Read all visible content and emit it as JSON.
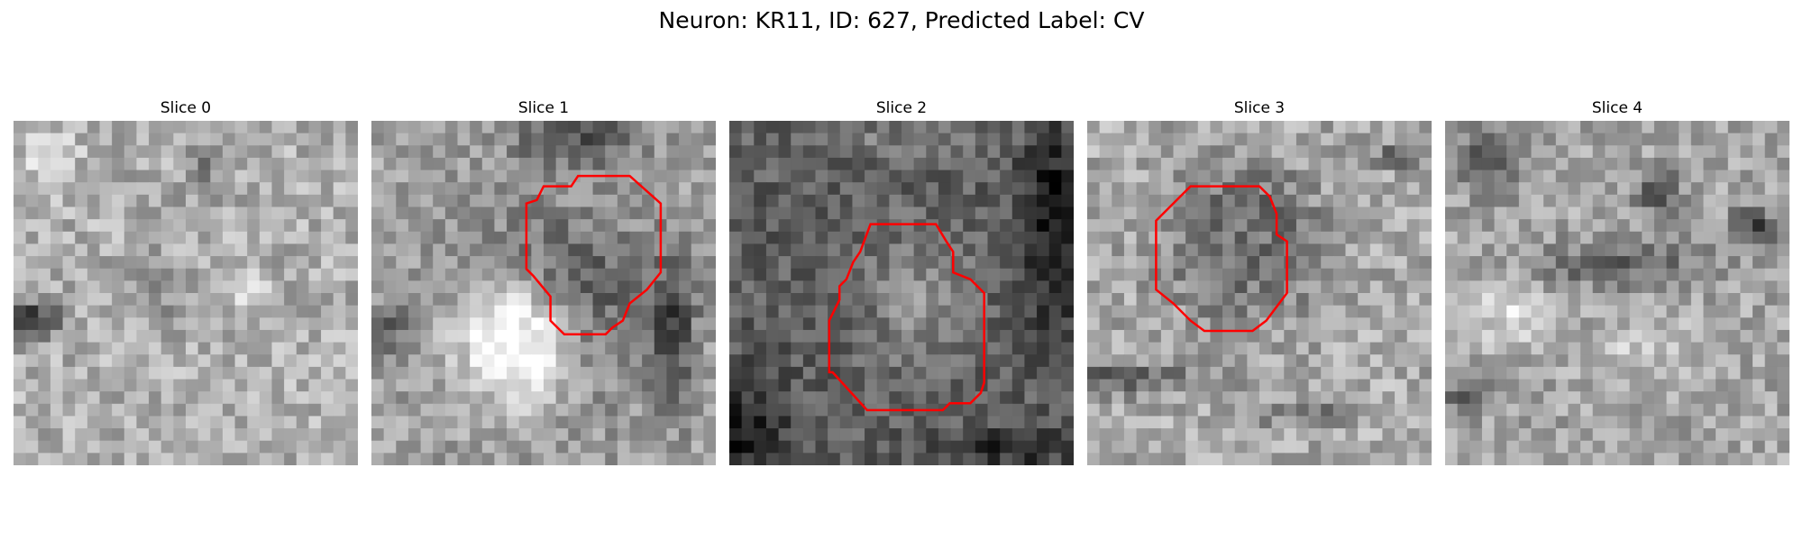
{
  "figure": {
    "title": "Neuron: KR11, ID: 627, Predicted Label: CV"
  },
  "panels": [
    {
      "title": "Slice 0",
      "base": 175,
      "contrast": 40,
      "seed": 11,
      "dark_spots": [
        [
          0.05,
          0.58,
          0.09,
          0.05,
          140
        ],
        [
          0.55,
          0.15,
          0.05,
          0.09,
          60
        ],
        [
          0.42,
          0.48,
          0.12,
          0.08,
          40
        ]
      ],
      "bright_spots": [
        [
          0.1,
          0.1,
          0.08,
          0.08,
          40
        ],
        [
          0.7,
          0.5,
          0.06,
          0.06,
          40
        ]
      ],
      "contour": null
    },
    {
      "title": "Slice 1",
      "base": 160,
      "contrast": 36,
      "seed": 23,
      "dark_spots": [
        [
          0.52,
          0.56,
          0.24,
          0.24,
          150
        ],
        [
          0.6,
          0.05,
          0.18,
          0.08,
          80
        ],
        [
          0.05,
          0.6,
          0.06,
          0.06,
          80
        ],
        [
          0.88,
          0.6,
          0.06,
          0.22,
          90
        ]
      ],
      "bright_spots": [
        [
          0.45,
          0.62,
          0.19,
          0.19,
          230
        ]
      ],
      "contour": [
        [
          0.48,
          0.23
        ],
        [
          0.5,
          0.19
        ],
        [
          0.58,
          0.19
        ],
        [
          0.6,
          0.16
        ],
        [
          0.75,
          0.16
        ],
        [
          0.84,
          0.24
        ],
        [
          0.84,
          0.44
        ],
        [
          0.8,
          0.49
        ],
        [
          0.75,
          0.53
        ],
        [
          0.73,
          0.58
        ],
        [
          0.7,
          0.6
        ],
        [
          0.68,
          0.62
        ],
        [
          0.56,
          0.62
        ],
        [
          0.52,
          0.58
        ],
        [
          0.52,
          0.51
        ],
        [
          0.47,
          0.45
        ],
        [
          0.45,
          0.43
        ],
        [
          0.45,
          0.24
        ]
      ]
    },
    {
      "title": "Slice 2",
      "base": 95,
      "contrast": 34,
      "seed": 37,
      "dark_spots": [
        [
          0.95,
          0.3,
          0.1,
          0.3,
          80
        ],
        [
          0.05,
          0.9,
          0.12,
          0.15,
          70
        ],
        [
          0.8,
          0.95,
          0.2,
          0.05,
          60
        ]
      ],
      "bright_spots": [
        [
          0.55,
          0.52,
          0.15,
          0.2,
          50
        ],
        [
          0.5,
          0.05,
          0.3,
          0.05,
          30
        ]
      ],
      "contour": [
        [
          0.38,
          0.38
        ],
        [
          0.41,
          0.3
        ],
        [
          0.6,
          0.3
        ],
        [
          0.63,
          0.35
        ],
        [
          0.65,
          0.38
        ],
        [
          0.65,
          0.44
        ],
        [
          0.7,
          0.46
        ],
        [
          0.74,
          0.5
        ],
        [
          0.74,
          0.76
        ],
        [
          0.73,
          0.79
        ],
        [
          0.7,
          0.82
        ],
        [
          0.64,
          0.82
        ],
        [
          0.63,
          0.83
        ],
        [
          0.62,
          0.84
        ],
        [
          0.4,
          0.84
        ],
        [
          0.3,
          0.73
        ],
        [
          0.29,
          0.73
        ],
        [
          0.29,
          0.58
        ],
        [
          0.32,
          0.52
        ],
        [
          0.32,
          0.48
        ],
        [
          0.34,
          0.46
        ],
        [
          0.36,
          0.41
        ]
      ]
    },
    {
      "title": "Slice 3",
      "base": 170,
      "contrast": 40,
      "seed": 41,
      "dark_spots": [
        [
          0.45,
          0.35,
          0.2,
          0.2,
          110
        ],
        [
          0.1,
          0.75,
          0.25,
          0.04,
          80
        ],
        [
          0.7,
          0.85,
          0.2,
          0.04,
          60
        ],
        [
          0.9,
          0.1,
          0.06,
          0.04,
          70
        ]
      ],
      "bright_spots": [
        [
          0.44,
          0.36,
          0.12,
          0.12,
          60
        ],
        [
          0.85,
          0.85,
          0.06,
          0.05,
          40
        ]
      ],
      "contour": [
        [
          0.2,
          0.29
        ],
        [
          0.3,
          0.19
        ],
        [
          0.5,
          0.19
        ],
        [
          0.53,
          0.22
        ],
        [
          0.55,
          0.27
        ],
        [
          0.55,
          0.33
        ],
        [
          0.58,
          0.35
        ],
        [
          0.58,
          0.5
        ],
        [
          0.55,
          0.54
        ],
        [
          0.52,
          0.58
        ],
        [
          0.48,
          0.61
        ],
        [
          0.34,
          0.61
        ],
        [
          0.3,
          0.58
        ],
        [
          0.25,
          0.53
        ],
        [
          0.2,
          0.49
        ]
      ]
    },
    {
      "title": "Slice 4",
      "base": 165,
      "contrast": 38,
      "seed": 53,
      "dark_spots": [
        [
          0.12,
          0.12,
          0.08,
          0.09,
          90
        ],
        [
          0.62,
          0.2,
          0.06,
          0.06,
          100
        ],
        [
          0.9,
          0.3,
          0.06,
          0.06,
          90
        ],
        [
          0.5,
          0.42,
          0.28,
          0.07,
          60
        ],
        [
          0.05,
          0.8,
          0.1,
          0.05,
          60
        ]
      ],
      "bright_spots": [
        [
          0.2,
          0.55,
          0.12,
          0.1,
          60
        ],
        [
          0.6,
          0.65,
          0.15,
          0.08,
          40
        ]
      ],
      "contour": null
    }
  ]
}
